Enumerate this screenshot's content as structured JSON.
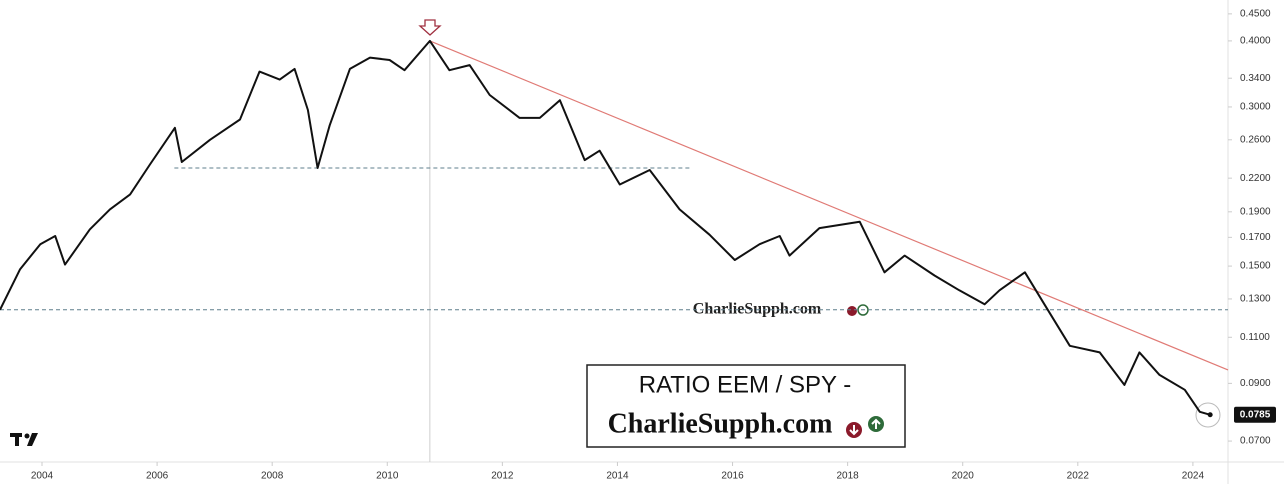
{
  "chart_data": {
    "type": "line",
    "title": "RATIO EEM / SPY -",
    "subtitle": "CharlieSupph.com",
    "watermark": "CharlieSupph.com",
    "log_scale": true,
    "xlim": [
      2003.27,
      2024.61
    ],
    "ylim": [
      0.0639,
      0.478
    ],
    "xticks": [
      2004,
      2006,
      2008,
      2010,
      2012,
      2014,
      2016,
      2018,
      2020,
      2022,
      2024
    ],
    "yticks": [
      {
        "value": 0.45,
        "label": "0.4500"
      },
      {
        "value": 0.4,
        "label": "0.4000"
      },
      {
        "value": 0.34,
        "label": "0.3400"
      },
      {
        "value": 0.3,
        "label": "0.3000"
      },
      {
        "value": 0.26,
        "label": "0.2600"
      },
      {
        "value": 0.22,
        "label": "0.2200"
      },
      {
        "value": 0.19,
        "label": "0.1900"
      },
      {
        "value": 0.17,
        "label": "0.1700"
      },
      {
        "value": 0.15,
        "label": "0.1500"
      },
      {
        "value": 0.13,
        "label": "0.1300"
      },
      {
        "value": 0.11,
        "label": "0.1100"
      },
      {
        "value": 0.09,
        "label": "0.0900"
      },
      {
        "value": 0.07,
        "label": "0.0700"
      }
    ],
    "last_value": {
      "value": 0.0785,
      "label": "0.0785"
    },
    "series": [
      {
        "color": "#111111",
        "x": [
          2003.27,
          2003.62,
          2003.97,
          2004.23,
          2004.4,
          2004.83,
          2005.18,
          2005.53,
          2005.87,
          2006.31,
          2006.43,
          2006.92,
          2007.44,
          2007.78,
          2008.13,
          2008.39,
          2008.62,
          2008.79,
          2009.0,
          2009.35,
          2009.7,
          2010.04,
          2010.3,
          2010.74,
          2011.08,
          2011.43,
          2011.78,
          2012.3,
          2012.65,
          2013.0,
          2013.43,
          2013.69,
          2014.04,
          2014.56,
          2015.08,
          2015.6,
          2016.04,
          2016.47,
          2016.82,
          2016.99,
          2017.51,
          2018.21,
          2018.64,
          2018.99,
          2019.51,
          2019.94,
          2020.38,
          2020.64,
          2021.08,
          2021.42,
          2021.86,
          2022.38,
          2022.81,
          2023.07,
          2023.42,
          2023.86,
          2024.12,
          2024.3
        ],
        "values": [
          0.124,
          0.148,
          0.165,
          0.171,
          0.151,
          0.176,
          0.192,
          0.205,
          0.233,
          0.274,
          0.236,
          0.26,
          0.284,
          0.35,
          0.338,
          0.354,
          0.296,
          0.23,
          0.277,
          0.354,
          0.372,
          0.368,
          0.352,
          0.4,
          0.352,
          0.36,
          0.316,
          0.286,
          0.286,
          0.309,
          0.238,
          0.248,
          0.214,
          0.228,
          0.192,
          0.172,
          0.154,
          0.165,
          0.171,
          0.157,
          0.177,
          0.182,
          0.146,
          0.157,
          0.144,
          0.135,
          0.127,
          0.135,
          0.146,
          0.127,
          0.106,
          0.103,
          0.0894,
          0.103,
          0.0934,
          0.0875,
          0.0795,
          0.0785
        ]
      }
    ],
    "trendline": {
      "color": "#e07a75",
      "x": [
        2010.74,
        2024.61
      ],
      "values": [
        0.4,
        0.0954
      ]
    },
    "levels": [
      {
        "value": 0.23,
        "from": 2006.3,
        "to": 2015.3,
        "color": "#5f7f8c"
      },
      {
        "value": 0.124,
        "from": 2003.27,
        "to": 2024.61,
        "color": "#5f7f8c"
      }
    ],
    "marker_x": 2010.74
  }
}
